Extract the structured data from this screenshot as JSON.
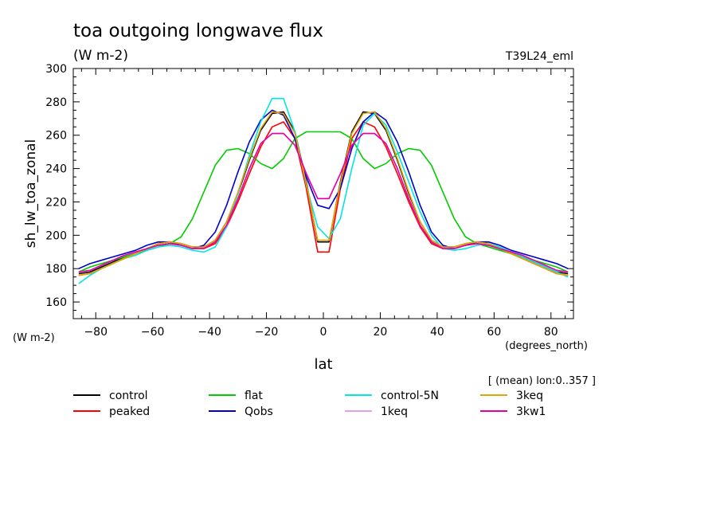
{
  "chart_data": {
    "type": "line",
    "title": "toa outgoing longwave flux",
    "subtitle": "(W m-2)",
    "run_label": "T39L24_eml",
    "xlabel": "lat",
    "x_unit": "(degrees_north)",
    "ylabel": "sh_lw_toa_zonal",
    "y_unit": "(W m-2)",
    "mean_note": "[ (mean) lon:0..357 ]",
    "xlim": [
      -87.9,
      87.9
    ],
    "ylim": [
      150,
      300
    ],
    "x_ticks": [
      -80,
      -60,
      -40,
      -20,
      0,
      20,
      40,
      60,
      80
    ],
    "y_ticks": [
      160,
      180,
      200,
      220,
      240,
      260,
      280,
      300
    ],
    "x": [
      -86,
      -82,
      -78,
      -74,
      -70,
      -66,
      -62,
      -58,
      -54,
      -50,
      -46,
      -42,
      -38,
      -34,
      -30,
      -26,
      -22,
      -18,
      -14,
      -10,
      -6,
      -2,
      2,
      6,
      10,
      14,
      18,
      22,
      26,
      30,
      34,
      38,
      42,
      46,
      50,
      54,
      58,
      62,
      66,
      70,
      74,
      78,
      82,
      86
    ],
    "series": [
      {
        "name": "control",
        "color": "#000000",
        "values": [
          177,
          178,
          181,
          184,
          187,
          189,
          192,
          195,
          196,
          195,
          193,
          193,
          197,
          208,
          225,
          245,
          263,
          273,
          274,
          262,
          232,
          196,
          196,
          232,
          262,
          274,
          273,
          263,
          245,
          225,
          208,
          197,
          193,
          193,
          195,
          196,
          195,
          192,
          189,
          187,
          184,
          181,
          178,
          177
        ]
      },
      {
        "name": "peaked",
        "color": "#ff0000",
        "values": [
          176,
          177,
          180,
          183,
          186,
          189,
          192,
          194,
          195,
          194,
          192,
          192,
          195,
          205,
          220,
          237,
          253,
          265,
          268,
          258,
          228,
          190,
          190,
          228,
          258,
          268,
          265,
          253,
          237,
          220,
          205,
          195,
          192,
          192,
          194,
          195,
          194,
          192,
          189,
          186,
          183,
          180,
          177,
          176
        ]
      },
      {
        "name": "flat",
        "color": "#00cc00",
        "values": [
          178,
          181,
          183,
          185,
          187,
          189,
          191,
          193,
          195,
          199,
          210,
          226,
          242,
          251,
          252,
          249,
          243,
          240,
          246,
          258,
          262,
          262,
          262,
          262,
          258,
          246,
          240,
          243,
          249,
          252,
          251,
          242,
          226,
          210,
          199,
          195,
          193,
          191,
          189,
          187,
          185,
          183,
          181,
          178
        ]
      },
      {
        "name": "Qobs",
        "color": "#0000cc",
        "values": [
          180,
          183,
          185,
          187,
          189,
          191,
          194,
          196,
          196,
          194,
          192,
          194,
          202,
          218,
          238,
          256,
          269,
          275,
          272,
          258,
          235,
          218,
          216,
          228,
          252,
          268,
          274,
          269,
          256,
          238,
          218,
          202,
          194,
          192,
          194,
          196,
          196,
          194,
          191,
          189,
          187,
          185,
          183,
          180
        ]
      },
      {
        "name": "control-5N",
        "color": "#00e5e5",
        "values": [
          171,
          176,
          180,
          183,
          186,
          188,
          191,
          193,
          194,
          193,
          191,
          190,
          193,
          205,
          225,
          248,
          268,
          282,
          282,
          262,
          230,
          205,
          198,
          210,
          240,
          266,
          273,
          266,
          250,
          232,
          214,
          200,
          192,
          191,
          192,
          194,
          195,
          193,
          190,
          187,
          184,
          181,
          178,
          175
        ]
      },
      {
        "name": "1keq",
        "color": "#e5a0e5",
        "values": [
          178,
          179,
          182,
          185,
          188,
          190,
          192,
          194,
          195,
          194,
          192,
          192,
          196,
          206,
          222,
          240,
          255,
          261,
          261,
          254,
          237,
          222,
          222,
          237,
          254,
          261,
          261,
          255,
          240,
          222,
          206,
          196,
          192,
          192,
          194,
          195,
          194,
          192,
          190,
          188,
          185,
          182,
          179,
          178
        ]
      },
      {
        "name": "3keq",
        "color": "#e5a500",
        "values": [
          176,
          177,
          180,
          183,
          186,
          189,
          192,
          195,
          196,
          195,
          193,
          193,
          197,
          208,
          226,
          246,
          264,
          274,
          273,
          261,
          231,
          197,
          197,
          231,
          261,
          273,
          274,
          264,
          246,
          226,
          208,
          197,
          193,
          193,
          195,
          196,
          195,
          192,
          189,
          186,
          183,
          180,
          177,
          176
        ]
      },
      {
        "name": "3kw1",
        "color": "#e500a5",
        "values": [
          178,
          179,
          182,
          185,
          188,
          190,
          192,
          194,
          195,
          194,
          192,
          192,
          196,
          206,
          222,
          240,
          255,
          261,
          261,
          254,
          237,
          222,
          222,
          237,
          254,
          261,
          261,
          255,
          240,
          222,
          206,
          196,
          192,
          192,
          194,
          195,
          194,
          192,
          190,
          188,
          185,
          182,
          179,
          178
        ]
      }
    ]
  }
}
